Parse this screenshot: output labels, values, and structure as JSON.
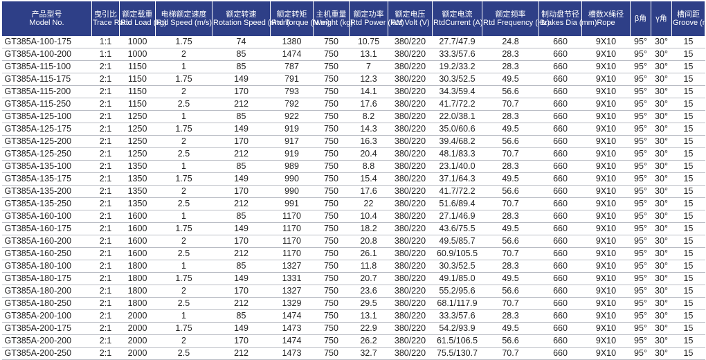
{
  "headers": [
    {
      "cn": "产品型号",
      "en": "Model No."
    },
    {
      "cn": "曳引比",
      "en": "Trace Ratio"
    },
    {
      "cn": "额定载重",
      "en": "Rtd Load (kg)"
    },
    {
      "cn": "电梯额定速度",
      "en": "Rtd Speed (m/s)"
    },
    {
      "cn": "额定转速",
      "en": "Rotation Speed (r/min)"
    },
    {
      "cn": "额定转矩",
      "en": "Rtd Torque (N.m)"
    },
    {
      "cn": "主机重量",
      "en": "Weight (kg)"
    },
    {
      "cn": "额定功率",
      "en": "Rtd Power (kW)"
    },
    {
      "cn": "额定电压",
      "en": "Rtd Volt (V)"
    },
    {
      "cn": "额定电流",
      "en": "RtdCurrent (A)"
    },
    {
      "cn": "额定频率",
      "en": "Rtd Frequency (Hz)"
    },
    {
      "cn": "制动盘节径",
      "en": "Brakes Dia (mm)"
    },
    {
      "cn": "槽数X绳径",
      "en": "Rope"
    },
    {
      "cn": "β角",
      "en": ""
    },
    {
      "cn": "γ角",
      "en": ""
    },
    {
      "cn": "槽间距",
      "en": "Groove (mm)"
    }
  ],
  "rows": [
    [
      "GT385A-100-175",
      "1:1",
      "1000",
      "1.75",
      "74",
      "1380",
      "750",
      "10.75",
      "380/220",
      "27.7/47.9",
      "24.8",
      "660",
      "9X10",
      "95°",
      "30°",
      "15"
    ],
    [
      "GT385A-100-200",
      "1:1",
      "1000",
      "2",
      "85",
      "1474",
      "750",
      "13.1",
      "380/220",
      "33.3/57.6",
      "28.3",
      "660",
      "9X10",
      "95°",
      "30°",
      "15"
    ],
    [
      "GT385A-115-100",
      "2:1",
      "1150",
      "1",
      "85",
      "787",
      "750",
      "7",
      "380/220",
      "19.2/33.2",
      "28.3",
      "660",
      "9X10",
      "95°",
      "30°",
      "15"
    ],
    [
      "GT385A-115-175",
      "2:1",
      "1150",
      "1.75",
      "149",
      "791",
      "750",
      "12.3",
      "380/220",
      "30.3/52.5",
      "49.5",
      "660",
      "9X10",
      "95°",
      "30°",
      "15"
    ],
    [
      "GT385A-115-200",
      "2:1",
      "1150",
      "2",
      "170",
      "793",
      "750",
      "14.1",
      "380/220",
      "34.3/59.4",
      "56.6",
      "660",
      "9X10",
      "95°",
      "30°",
      "15"
    ],
    [
      "GT385A-115-250",
      "2:1",
      "1150",
      "2.5",
      "212",
      "792",
      "750",
      "17.6",
      "380/220",
      "41.7/72.2",
      "70.7",
      "660",
      "9X10",
      "95°",
      "30°",
      "15"
    ],
    [
      "GT385A-125-100",
      "2:1",
      "1250",
      "1",
      "85",
      "922",
      "750",
      "8.2",
      "380/220",
      "22.0/38.1",
      "28.3",
      "660",
      "9X10",
      "95°",
      "30°",
      "15"
    ],
    [
      "GT385A-125-175",
      "2:1",
      "1250",
      "1.75",
      "149",
      "919",
      "750",
      "14.3",
      "380/220",
      "35.0/60.6",
      "49.5",
      "660",
      "9X10",
      "95°",
      "30°",
      "15"
    ],
    [
      "GT385A-125-200",
      "2:1",
      "1250",
      "2",
      "170",
      "917",
      "750",
      "16.3",
      "380/220",
      "39.4/68.2",
      "56.6",
      "660",
      "9X10",
      "95°",
      "30°",
      "15"
    ],
    [
      "GT385A-125-250",
      "2:1",
      "1250",
      "2.5",
      "212",
      "919",
      "750",
      "20.4",
      "380/220",
      "48.1/83.3",
      "70.7",
      "660",
      "9X10",
      "95°",
      "30°",
      "15"
    ],
    [
      "GT385A-135-100",
      "2:1",
      "1350",
      "1",
      "85",
      "989",
      "750",
      "8.8",
      "380/220",
      "23.1/40.0",
      "28.3",
      "660",
      "9X10",
      "95°",
      "30°",
      "15"
    ],
    [
      "GT385A-135-175",
      "2:1",
      "1350",
      "1.75",
      "149",
      "990",
      "750",
      "15.4",
      "380/220",
      "37.1/64.3",
      "49.5",
      "660",
      "9X10",
      "95°",
      "30°",
      "15"
    ],
    [
      "GT385A-135-200",
      "2:1",
      "1350",
      "2",
      "170",
      "990",
      "750",
      "17.6",
      "380/220",
      "41.7/72.2",
      "56.6",
      "660",
      "9X10",
      "95°",
      "30°",
      "15"
    ],
    [
      "GT385A-135-250",
      "2:1",
      "1350",
      "2.5",
      "212",
      "991",
      "750",
      "22",
      "380/220",
      "51.6/89.4",
      "70.7",
      "660",
      "9X10",
      "95°",
      "30°",
      "15"
    ],
    [
      "GT385A-160-100",
      "2:1",
      "1600",
      "1",
      "85",
      "1170",
      "750",
      "10.4",
      "380/220",
      "27.1/46.9",
      "28.3",
      "660",
      "9X10",
      "95°",
      "30°",
      "15"
    ],
    [
      "GT385A-160-175",
      "2:1",
      "1600",
      "1.75",
      "149",
      "1170",
      "750",
      "18.2",
      "380/220",
      "43.6/75.5",
      "49.5",
      "660",
      "9X10",
      "95°",
      "30°",
      "15"
    ],
    [
      "GT385A-160-200",
      "2:1",
      "1600",
      "2",
      "170",
      "1170",
      "750",
      "20.8",
      "380/220",
      "49.5/85.7",
      "56.6",
      "660",
      "9X10",
      "95°",
      "30°",
      "15"
    ],
    [
      "GT385A-160-250",
      "2:1",
      "1600",
      "2.5",
      "212",
      "1170",
      "750",
      "26.1",
      "380/220",
      "60.9/105.5",
      "70.7",
      "660",
      "9X10",
      "95°",
      "30°",
      "15"
    ],
    [
      "GT385A-180-100",
      "2:1",
      "1800",
      "1",
      "85",
      "1327",
      "750",
      "11.8",
      "380/220",
      "30.3/52.5",
      "28.3",
      "660",
      "9X10",
      "95°",
      "30°",
      "15"
    ],
    [
      "GT385A-180-175",
      "2:1",
      "1800",
      "1.75",
      "149",
      "1331",
      "750",
      "20.7",
      "380/220",
      "49.1/85.0",
      "49.5",
      "660",
      "9X10",
      "95°",
      "30°",
      "15"
    ],
    [
      "GT385A-180-200",
      "2:1",
      "1800",
      "2",
      "170",
      "1327",
      "750",
      "23.6",
      "380/220",
      "55.2/95.6",
      "56.6",
      "660",
      "9X10",
      "95°",
      "30°",
      "15"
    ],
    [
      "GT385A-180-250",
      "2:1",
      "1800",
      "2.5",
      "212",
      "1329",
      "750",
      "29.5",
      "380/220",
      "68.1/117.9",
      "70.7",
      "660",
      "9X10",
      "95°",
      "30°",
      "15"
    ],
    [
      "GT385A-200-100",
      "2:1",
      "2000",
      "1",
      "85",
      "1474",
      "750",
      "13.1",
      "380/220",
      "33.3/57.6",
      "28.3",
      "660",
      "9X10",
      "95°",
      "30°",
      "15"
    ],
    [
      "GT385A-200-175",
      "2:1",
      "2000",
      "1.75",
      "149",
      "1473",
      "750",
      "22.9",
      "380/220",
      "54.2/93.9",
      "49.5",
      "660",
      "9X10",
      "95°",
      "30°",
      "15"
    ],
    [
      "GT385A-200-200",
      "2:1",
      "2000",
      "2",
      "170",
      "1474",
      "750",
      "26.2",
      "380/220",
      "61.5/106.5",
      "56.6",
      "660",
      "9X10",
      "95°",
      "30°",
      "15"
    ],
    [
      "GT385A-200-250",
      "2:1",
      "2000",
      "2.5",
      "212",
      "1473",
      "750",
      "32.7",
      "380/220",
      "75.5/130.7",
      "70.7",
      "660",
      "9X10",
      "95°",
      "30°",
      "15"
    ]
  ]
}
